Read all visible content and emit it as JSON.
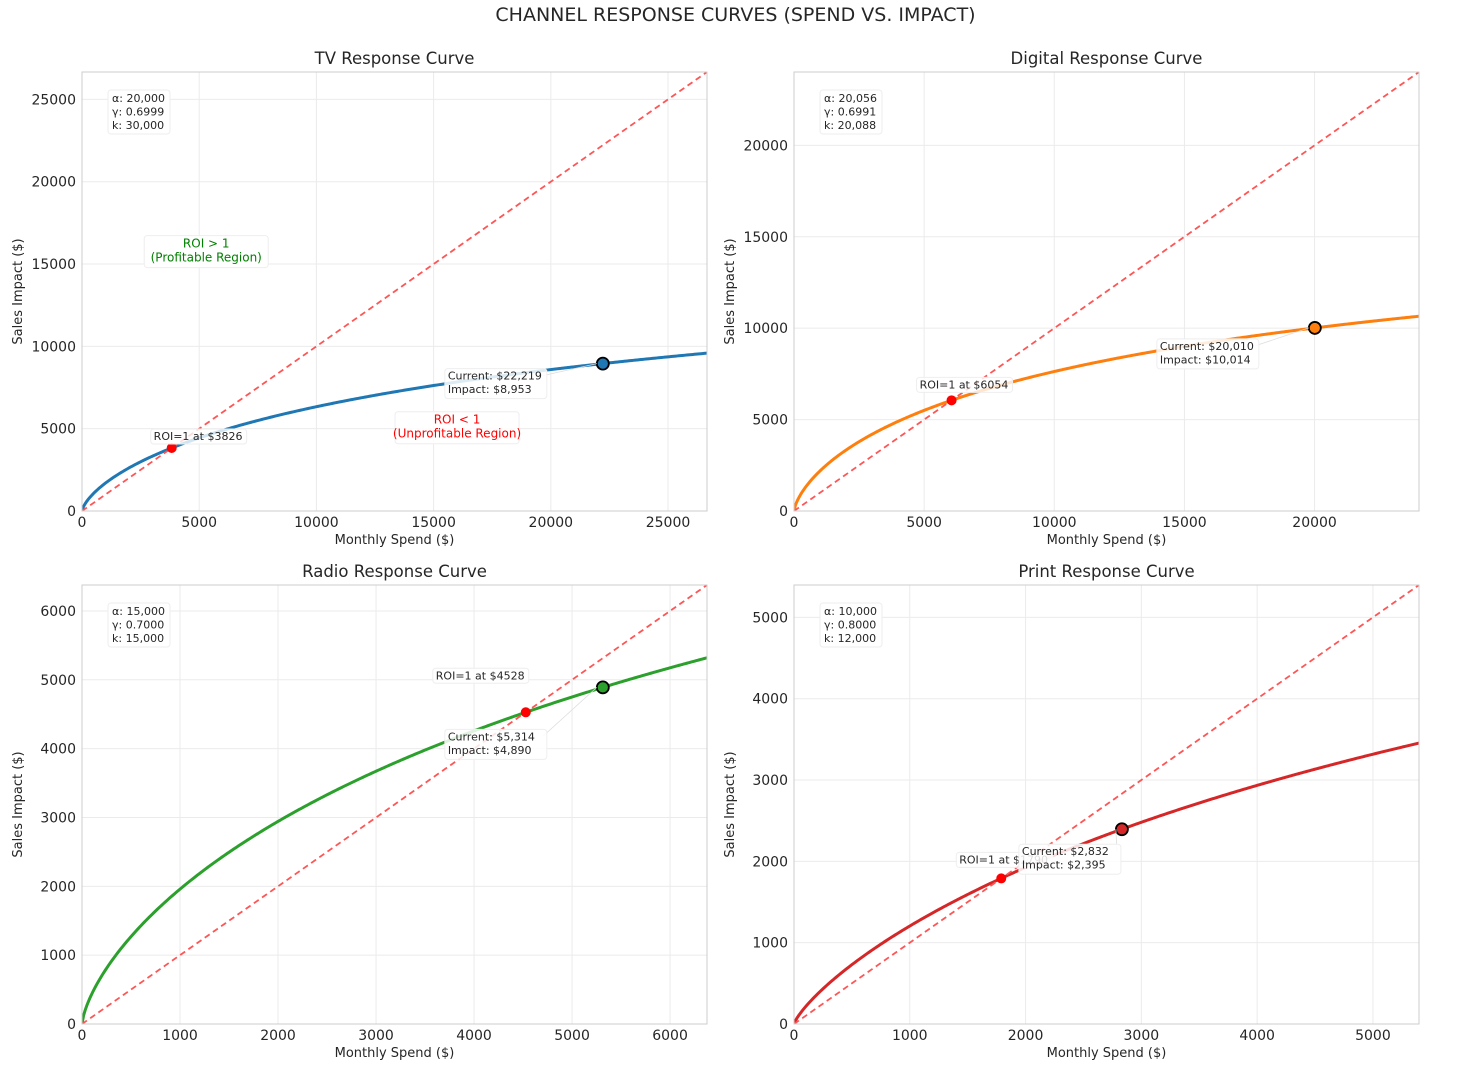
{
  "figure_title": "CHANNEL RESPONSE CURVES (SPEND VS. IMPACT)",
  "colors": {
    "tv": "#1f77b4",
    "digital": "#ff7f0e",
    "radio": "#2ca02c",
    "print": "#d62728",
    "breakeven_line": "#ff5555",
    "roi_point": "#ff0000",
    "profitable_text": "#008000",
    "unprofitable_text": "#ff0000"
  },
  "chart_data": [
    {
      "type": "line",
      "title": "TV Response Curve",
      "xlabel": "Monthly Spend ($)",
      "ylabel": "Sales Impact ($)",
      "xlim": [
        0,
        26663
      ],
      "ylim": [
        0,
        26663
      ],
      "xticks": [
        0,
        5000,
        10000,
        15000,
        20000,
        25000
      ],
      "yticks": [
        0,
        5000,
        10000,
        15000,
        20000,
        25000
      ],
      "grid": true,
      "params": {
        "alpha": 20000,
        "gamma": 0.6999,
        "k": 30000
      },
      "param_lines": [
        "α: 20,000",
        "γ: 0.6999",
        "k: 30,000"
      ],
      "series": [
        {
          "kind": "response",
          "color_key": "tv"
        },
        {
          "kind": "breakeven",
          "equation": "y = x"
        }
      ],
      "current": {
        "spend": 22219,
        "impact": 8953,
        "lines": [
          "Current: $22,219",
          "Impact: $8,953"
        ]
      },
      "roi_point": {
        "spend": 3826,
        "impact": 3826,
        "label": "ROI=1 at $3826"
      },
      "regions": [
        {
          "lines": [
            "ROI > 1",
            "(Profitable Region)"
          ],
          "x": 5300,
          "y": 16000,
          "color_key": "profitable_text"
        },
        {
          "lines": [
            "ROI < 1",
            "(Unprofitable Region)"
          ],
          "x": 16000,
          "y": 5300,
          "color_key": "unprofitable_text"
        }
      ]
    },
    {
      "type": "line",
      "title": "Digital Response Curve",
      "xlabel": "Monthly Spend ($)",
      "ylabel": "Sales Impact ($)",
      "xlim": [
        0,
        24012
      ],
      "ylim": [
        0,
        24012
      ],
      "xticks": [
        0,
        5000,
        10000,
        15000,
        20000
      ],
      "yticks": [
        0,
        5000,
        10000,
        15000,
        20000
      ],
      "grid": true,
      "params": {
        "alpha": 20056,
        "gamma": 0.6991,
        "k": 20088
      },
      "param_lines": [
        "α: 20,056",
        "γ: 0.6991",
        "k: 20,088"
      ],
      "series": [
        {
          "kind": "response",
          "color_key": "digital"
        },
        {
          "kind": "breakeven",
          "equation": "y = x"
        }
      ],
      "current": {
        "spend": 20010,
        "impact": 10014,
        "lines": [
          "Current: $20,010",
          "Impact: $10,014"
        ]
      },
      "roi_point": {
        "spend": 6054,
        "impact": 6054,
        "label": "ROI=1 at $6054"
      },
      "regions": []
    },
    {
      "type": "line",
      "title": "Radio Response Curve",
      "xlabel": "Monthly Spend ($)",
      "ylabel": "Sales Impact ($)",
      "xlim": [
        0,
        6377
      ],
      "ylim": [
        0,
        6377
      ],
      "xticks": [
        0,
        1000,
        2000,
        3000,
        4000,
        5000,
        6000
      ],
      "yticks": [
        0,
        1000,
        2000,
        3000,
        4000,
        5000,
        6000
      ],
      "grid": true,
      "params": {
        "alpha": 15000,
        "gamma": 0.7,
        "k": 15000
      },
      "param_lines": [
        "α: 15,000",
        "γ: 0.7000",
        "k: 15,000"
      ],
      "series": [
        {
          "kind": "response",
          "color_key": "radio"
        },
        {
          "kind": "breakeven",
          "equation": "y = x"
        }
      ],
      "current": {
        "spend": 5314,
        "impact": 4890,
        "lines": [
          "Current: $5,314",
          "Impact: $4,890"
        ]
      },
      "roi_point": {
        "spend": 4528,
        "impact": 4528,
        "label": "ROI=1 at $4528"
      },
      "regions": []
    },
    {
      "type": "line",
      "title": "Print Response Curve",
      "xlabel": "Monthly Spend ($)",
      "ylabel": "Sales Impact ($)",
      "xlim": [
        0,
        5398
      ],
      "ylim": [
        0,
        5398
      ],
      "xticks": [
        0,
        1000,
        2000,
        3000,
        4000,
        5000
      ],
      "yticks": [
        0,
        1000,
        2000,
        3000,
        4000,
        5000
      ],
      "grid": true,
      "params": {
        "alpha": 10000,
        "gamma": 0.8,
        "k": 12000
      },
      "param_lines": [
        "α: 10,000",
        "γ: 0.8000",
        "k: 12,000"
      ],
      "series": [
        {
          "kind": "response",
          "color_key": "print"
        },
        {
          "kind": "breakeven",
          "equation": "y = x"
        }
      ],
      "current": {
        "spend": 2832,
        "impact": 2395,
        "lines": [
          "Current: $2,832",
          "Impact: $2,395"
        ]
      },
      "roi_point": {
        "spend": 1790,
        "impact": 1790,
        "label": "ROI=1 at $1790"
      },
      "regions": []
    }
  ]
}
